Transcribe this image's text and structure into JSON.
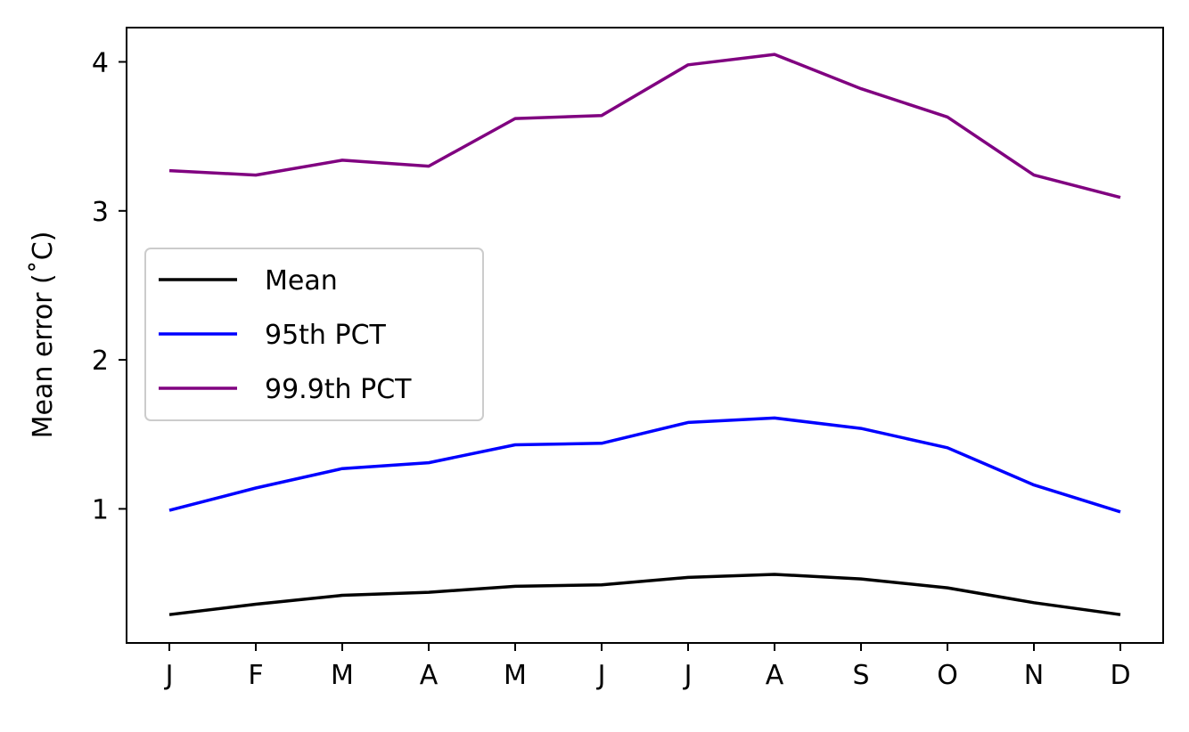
{
  "chart_data": {
    "type": "line",
    "title": "",
    "xlabel": "",
    "ylabel": "Mean error (˚C)",
    "categories": [
      "J",
      "F",
      "M",
      "A",
      "M",
      "J",
      "J",
      "A",
      "S",
      "O",
      "N",
      "D"
    ],
    "yticks": [
      1,
      2,
      3,
      4
    ],
    "ylim": [
      0.1,
      4.23
    ],
    "grid": false,
    "legend_position": "center-left",
    "series": [
      {
        "name": "Mean",
        "color": "#000000",
        "values": [
          0.29,
          0.36,
          0.42,
          0.44,
          0.48,
          0.49,
          0.54,
          0.56,
          0.53,
          0.47,
          0.37,
          0.29
        ]
      },
      {
        "name": "95th PCT",
        "color": "#0000ff",
        "values": [
          0.99,
          1.14,
          1.27,
          1.31,
          1.43,
          1.44,
          1.58,
          1.61,
          1.54,
          1.41,
          1.16,
          0.98
        ]
      },
      {
        "name": "99.9th PCT",
        "color": "#800080",
        "values": [
          3.27,
          3.24,
          3.34,
          3.3,
          3.62,
          3.64,
          3.98,
          4.05,
          3.82,
          3.63,
          3.24,
          3.09
        ]
      }
    ]
  }
}
